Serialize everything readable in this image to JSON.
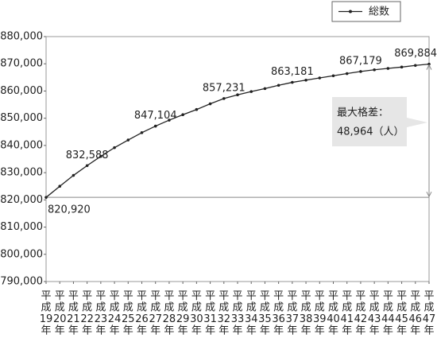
{
  "chart_data": {
    "type": "line",
    "categories": [
      "平成19年",
      "平成20年",
      "平成21年",
      "平成22年",
      "平成23年",
      "平成24年",
      "平成25年",
      "平成26年",
      "平成27年",
      "平成28年",
      "平成29年",
      "平成30年",
      "平成31年",
      "平成32年",
      "平成33年",
      "平成34年",
      "平成35年",
      "平成36年",
      "平成37年",
      "平成38年",
      "平成39年",
      "平成40年",
      "平成41年",
      "平成42年",
      "平成43年",
      "平成44年",
      "平成45年",
      "平成46年",
      "平成47年"
    ],
    "series": [
      {
        "name": "総数",
        "color": "#222222",
        "values": [
          820920,
          825000,
          829000,
          832588,
          836000,
          839200,
          842000,
          844700,
          847104,
          849300,
          851300,
          853200,
          855300,
          857231,
          858600,
          859800,
          860900,
          862100,
          863181,
          864000,
          864800,
          865600,
          866400,
          867179,
          867800,
          868300,
          868800,
          869400,
          869884
        ],
        "value_labels": [
          "820,920",
          null,
          null,
          "832,588",
          null,
          null,
          null,
          null,
          "847,104",
          null,
          null,
          null,
          null,
          "857,231",
          null,
          null,
          null,
          null,
          "863,181",
          null,
          null,
          null,
          null,
          "867,179",
          null,
          null,
          null,
          null,
          "869,884"
        ]
      }
    ],
    "ylim": [
      790000,
      880000
    ],
    "yticks": [
      {
        "value": 790000,
        "label": "790,000"
      },
      {
        "value": 800000,
        "label": "800,000"
      },
      {
        "value": 810000,
        "label": "810,000"
      },
      {
        "value": 820000,
        "label": "820,000"
      },
      {
        "value": 830000,
        "label": "830,000"
      },
      {
        "value": 840000,
        "label": "840,000"
      },
      {
        "value": 850000,
        "label": "850,000"
      },
      {
        "value": 860000,
        "label": "860,000"
      },
      {
        "value": 870000,
        "label": "870,000"
      },
      {
        "value": 880000,
        "label": "880,000"
      }
    ],
    "annotation": [
      "最大格差：",
      "48,964（人）"
    ],
    "legend": "top-right"
  }
}
